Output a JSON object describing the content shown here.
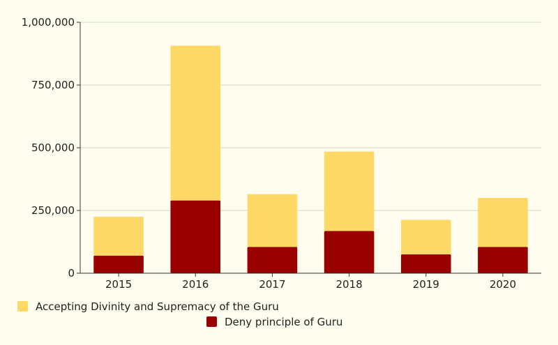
{
  "chart_data": {
    "type": "bar",
    "stacked": true,
    "categories": [
      "2015",
      "2016",
      "2017",
      "2018",
      "2019",
      "2020"
    ],
    "series": [
      {
        "name": "Deny principle of Guru",
        "color": "#990000",
        "values": [
          70000,
          290000,
          105000,
          168000,
          75000,
          105000
        ]
      },
      {
        "name": "Accepting Divinity and Supremacy of the Guru",
        "color": "#ffd966",
        "values": [
          155000,
          617000,
          210000,
          317000,
          138000,
          195000
        ]
      }
    ],
    "ylim": [
      0,
      1000000
    ],
    "yticks": [
      0,
      250000,
      500000,
      750000,
      1000000
    ],
    "ytick_labels": [
      "0",
      "250,000",
      "500,000",
      "750,000",
      "1,000,000"
    ],
    "grid": true,
    "legend_position": "bottom",
    "legend_order": [
      "Accepting Divinity and Supremacy of the Guru",
      "Deny principle of Guru"
    ],
    "xlabel": "",
    "ylabel": "",
    "title": ""
  }
}
